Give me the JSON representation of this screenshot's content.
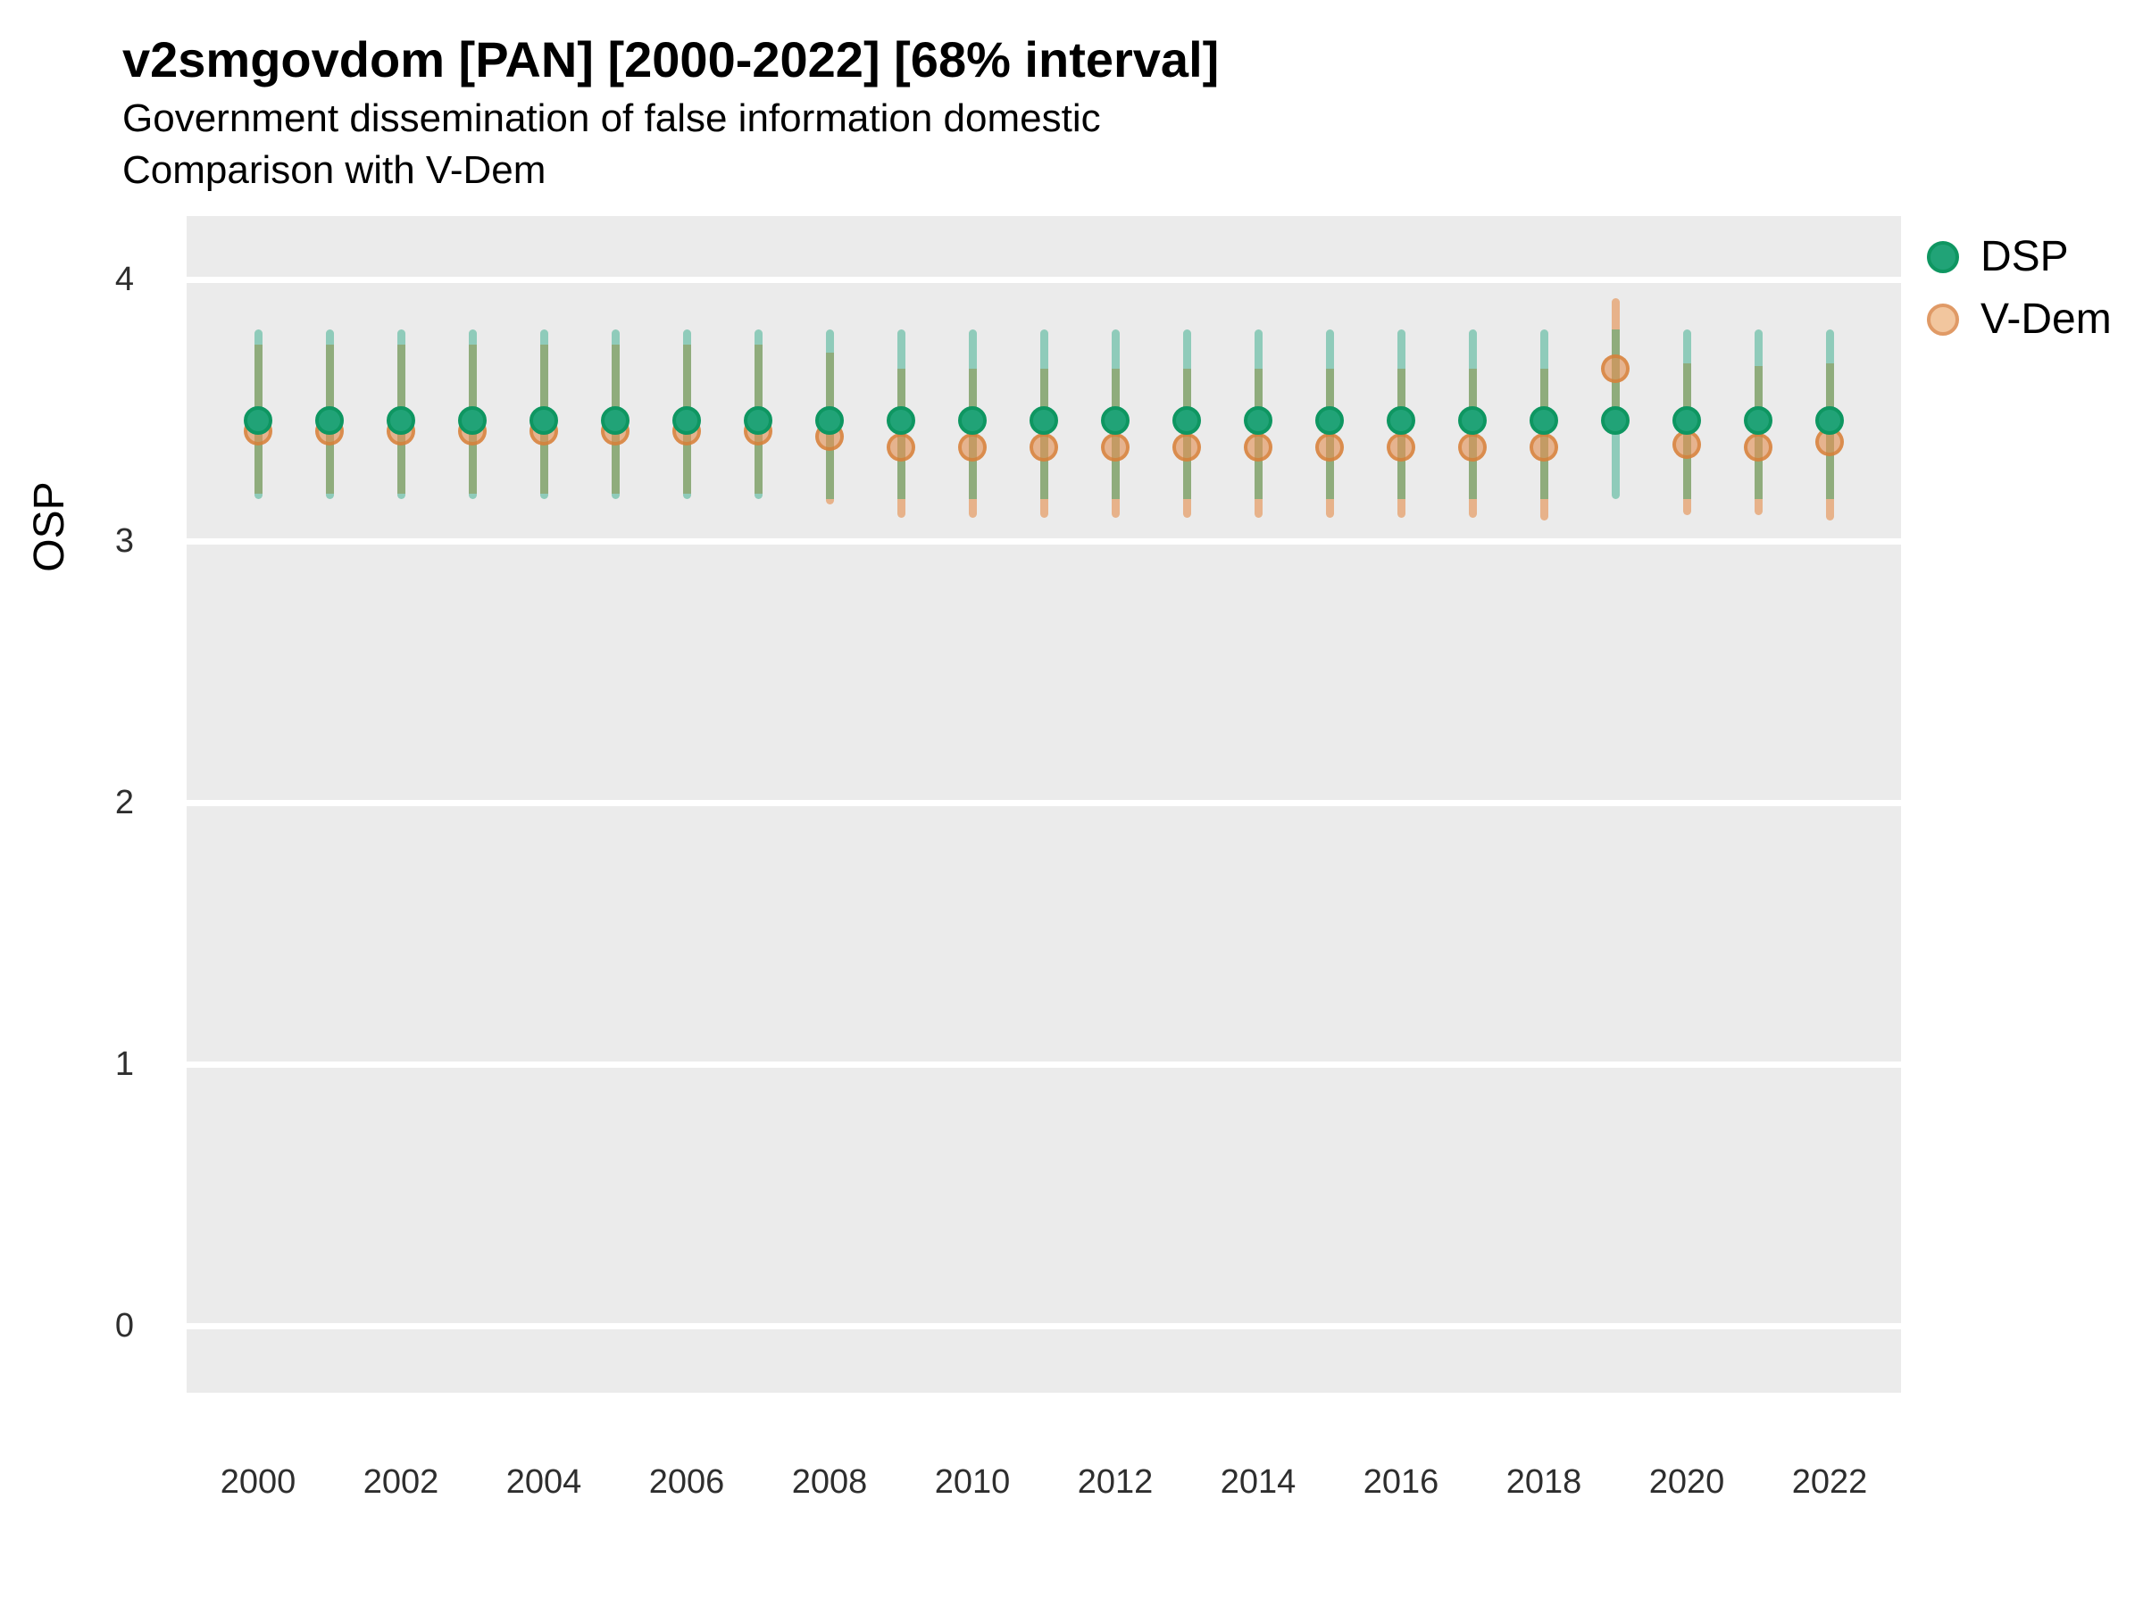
{
  "title": "v2smgovdom [PAN] [2000-2022] [68% interval]",
  "subtitle1": "Government dissemination of false information domestic",
  "subtitle2": "Comparison with V-Dem",
  "ylabel": "OSP",
  "legend": {
    "items": [
      {
        "label": "DSP"
      },
      {
        "label": "V-Dem"
      }
    ]
  },
  "chart_data": {
    "type": "scatter",
    "mark": "point-with-interval",
    "interval": "68%",
    "title": "v2smgovdom [PAN] [2000-2022] [68% interval]",
    "subtitle": [
      "Government dissemination of false information domestic",
      "Comparison with V-Dem"
    ],
    "xlabel": "",
    "ylabel": "OSP",
    "x": [
      2000,
      2001,
      2002,
      2003,
      2004,
      2005,
      2006,
      2007,
      2008,
      2009,
      2010,
      2011,
      2012,
      2013,
      2014,
      2015,
      2016,
      2017,
      2018,
      2019,
      2020,
      2021,
      2022
    ],
    "series": [
      {
        "name": "DSP",
        "point_color": "#21A377",
        "point_stroke": "#0E9661",
        "interval_color": "#8FCBBA",
        "values": [
          3.46,
          3.46,
          3.46,
          3.46,
          3.46,
          3.46,
          3.46,
          3.46,
          3.46,
          3.46,
          3.46,
          3.46,
          3.46,
          3.46,
          3.46,
          3.46,
          3.46,
          3.46,
          3.46,
          3.46,
          3.46,
          3.46,
          3.46
        ],
        "lo": [
          3.16,
          3.16,
          3.16,
          3.16,
          3.16,
          3.16,
          3.16,
          3.16,
          3.16,
          3.16,
          3.16,
          3.16,
          3.16,
          3.16,
          3.16,
          3.16,
          3.16,
          3.16,
          3.16,
          3.16,
          3.16,
          3.16,
          3.16
        ],
        "hi": [
          3.81,
          3.81,
          3.81,
          3.81,
          3.81,
          3.81,
          3.81,
          3.81,
          3.81,
          3.81,
          3.81,
          3.81,
          3.81,
          3.81,
          3.81,
          3.81,
          3.81,
          3.81,
          3.81,
          3.81,
          3.81,
          3.81,
          3.81
        ]
      },
      {
        "name": "V-Dem",
        "point_color": "#EFB88D",
        "point_stroke": "#E09A66",
        "interval_color": "#E7B28A",
        "values": [
          3.42,
          3.42,
          3.42,
          3.42,
          3.42,
          3.42,
          3.42,
          3.42,
          3.4,
          3.36,
          3.36,
          3.36,
          3.36,
          3.36,
          3.36,
          3.36,
          3.36,
          3.36,
          3.36,
          3.66,
          3.37,
          3.36,
          3.38
        ],
        "lo": [
          3.18,
          3.18,
          3.18,
          3.18,
          3.18,
          3.18,
          3.18,
          3.18,
          3.14,
          3.09,
          3.09,
          3.09,
          3.09,
          3.09,
          3.09,
          3.09,
          3.09,
          3.09,
          3.08,
          3.42,
          3.1,
          3.1,
          3.08
        ],
        "hi": [
          3.75,
          3.75,
          3.75,
          3.75,
          3.75,
          3.75,
          3.75,
          3.75,
          3.72,
          3.66,
          3.66,
          3.66,
          3.66,
          3.66,
          3.66,
          3.66,
          3.66,
          3.66,
          3.66,
          3.93,
          3.68,
          3.67,
          3.68
        ]
      }
    ],
    "overlap_color": "#8FAC7C",
    "panel_bg": "#EBEBEB",
    "gridline_color": "#FFFFFF",
    "grid": "horizontal-major-only",
    "yticks": [
      0,
      1,
      2,
      3,
      4
    ],
    "xticks": [
      2000,
      2002,
      2004,
      2006,
      2008,
      2010,
      2012,
      2014,
      2016,
      2018,
      2020,
      2022
    ],
    "ylim": [
      -0.26,
      4.26
    ],
    "legend_position": "right-top"
  }
}
